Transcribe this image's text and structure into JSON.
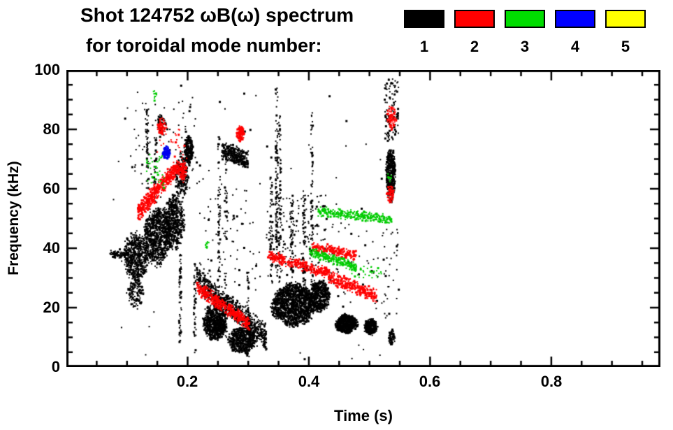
{
  "title_line1": "Shot 124752 ωB(ω) spectrum",
  "title_line2": "for toroidal mode number:",
  "legend": {
    "items": [
      {
        "label": "1",
        "color": "#000000"
      },
      {
        "label": "2",
        "color": "#ff0000"
      },
      {
        "label": "3",
        "color": "#00dd00"
      },
      {
        "label": "4",
        "color": "#0000ff"
      },
      {
        "label": "5",
        "color": "#ffff00"
      }
    ]
  },
  "chart_data": {
    "type": "scatter",
    "title": "Shot 124752 ωB(ω) spectrum for toroidal mode number: 1 2 3 4 5",
    "xlabel": "Time (s)",
    "ylabel": "Frequency (kHz)",
    "xlim": [
      0,
      0.98
    ],
    "ylim": [
      0,
      100
    ],
    "x_major_ticks": [
      0.2,
      0.4,
      0.6,
      0.8
    ],
    "x_tick_labels": [
      "0.2",
      "0.4",
      "0.6",
      "0.8"
    ],
    "x_minor_step": 0.05,
    "y_major_ticks": [
      0,
      20,
      40,
      60,
      80,
      100
    ],
    "y_tick_labels": [
      "0",
      "20",
      "40",
      "60",
      "80",
      "100"
    ],
    "y_minor_step": 5,
    "grid": false,
    "legend_position": "top-right",
    "modes": [
      {
        "n": 1,
        "color": "#000000"
      },
      {
        "n": 2,
        "color": "#ff0000"
      },
      {
        "n": 3,
        "color": "#00cc00"
      },
      {
        "n": 4,
        "color": "#0000ee"
      },
      {
        "n": 5,
        "color": "#ffff00"
      }
    ],
    "clusters": [
      {
        "mode": 1,
        "shape": "band",
        "t0": 0.072,
        "f0": 38,
        "t1": 0.103,
        "f1": 38.5,
        "th": 1.6,
        "n": 80
      },
      {
        "mode": 1,
        "shape": "blob",
        "tc": 0.115,
        "fc": 37,
        "tr": 0.023,
        "fr": 9,
        "n": 550
      },
      {
        "mode": 1,
        "shape": "blob",
        "tc": 0.114,
        "fc": 25,
        "tr": 0.015,
        "fr": 6,
        "n": 130
      },
      {
        "mode": 1,
        "shape": "blob",
        "tc": 0.15,
        "fc": 44,
        "tr": 0.026,
        "fr": 11,
        "n": 800
      },
      {
        "mode": 1,
        "shape": "blob",
        "tc": 0.178,
        "fc": 49,
        "tr": 0.02,
        "fr": 10,
        "n": 500
      },
      {
        "mode": 1,
        "shape": "vline",
        "t": 0.134,
        "f0": 60,
        "f1": 87,
        "n": 55
      },
      {
        "mode": 1,
        "shape": "vline",
        "t": 0.147,
        "f0": 55,
        "f1": 78,
        "n": 45
      },
      {
        "mode": 1,
        "shape": "blob",
        "tc": 0.157,
        "fc": 82,
        "tr": 0.008,
        "fr": 4,
        "n": 50
      },
      {
        "mode": 1,
        "shape": "blob",
        "tc": 0.19,
        "fc": 64,
        "tr": 0.012,
        "fr": 9,
        "n": 220
      },
      {
        "mode": 1,
        "shape": "blob",
        "tc": 0.202,
        "fc": 73,
        "tr": 0.008,
        "fr": 5.5,
        "n": 240
      },
      {
        "mode": 1,
        "shape": "vline",
        "t": 0.188,
        "f0": 8,
        "f1": 38,
        "n": 60
      },
      {
        "mode": 1,
        "shape": "vline",
        "t": 0.212,
        "f0": 10,
        "f1": 35,
        "n": 45
      },
      {
        "mode": 1,
        "shape": "band",
        "t0": 0.215,
        "f0": 30,
        "t1": 0.33,
        "f1": 10,
        "th": 5,
        "n": 700
      },
      {
        "mode": 1,
        "shape": "blob",
        "tc": 0.245,
        "fc": 15,
        "tr": 0.022,
        "fr": 7,
        "n": 700
      },
      {
        "mode": 1,
        "shape": "blob",
        "tc": 0.29,
        "fc": 9,
        "tr": 0.025,
        "fr": 5,
        "n": 550
      },
      {
        "mode": 1,
        "shape": "band",
        "t0": 0.256,
        "f0": 73,
        "t1": 0.3,
        "f1": 69.5,
        "th": 3.5,
        "n": 320
      },
      {
        "mode": 1,
        "shape": "vline",
        "t": 0.252,
        "f0": 12,
        "f1": 79,
        "n": 70
      },
      {
        "mode": 1,
        "shape": "vline",
        "t": 0.263,
        "f0": 10,
        "f1": 72,
        "n": 55
      },
      {
        "mode": 1,
        "shape": "vline",
        "t": 0.3,
        "f0": 3,
        "f1": 32,
        "n": 55
      },
      {
        "mode": 1,
        "shape": "blob",
        "tc": 0.375,
        "fc": 21,
        "tr": 0.041,
        "fr": 8,
        "n": 1400
      },
      {
        "mode": 1,
        "shape": "vline",
        "t": 0.347,
        "f0": 30,
        "f1": 94,
        "n": 100
      },
      {
        "mode": 1,
        "shape": "vline",
        "t": 0.352,
        "f0": 28,
        "f1": 86,
        "n": 70
      },
      {
        "mode": 1,
        "shape": "vline",
        "t": 0.338,
        "f0": 28,
        "f1": 66,
        "n": 55
      },
      {
        "mode": 1,
        "shape": "vline",
        "t": 0.372,
        "f0": 28,
        "f1": 55,
        "n": 45
      },
      {
        "mode": 1,
        "shape": "vline",
        "t": 0.392,
        "f0": 26,
        "f1": 58,
        "n": 55
      },
      {
        "mode": 1,
        "shape": "vline",
        "t": 0.405,
        "f0": 24,
        "f1": 86,
        "n": 75
      },
      {
        "mode": 1,
        "shape": "blob",
        "tc": 0.418,
        "fc": 24,
        "tr": 0.018,
        "fr": 6,
        "n": 450
      },
      {
        "mode": 1,
        "shape": "blob",
        "tc": 0.462,
        "fc": 14.5,
        "tr": 0.02,
        "fr": 3.5,
        "n": 600
      },
      {
        "mode": 1,
        "shape": "blob",
        "tc": 0.502,
        "fc": 13.5,
        "tr": 0.012,
        "fr": 3,
        "n": 300
      },
      {
        "mode": 1,
        "shape": "blob",
        "tc": 0.535,
        "fc": 65,
        "tr": 0.009,
        "fr": 10,
        "n": 450
      },
      {
        "mode": 1,
        "shape": "scatter",
        "t0": 0.525,
        "t1": 0.548,
        "f0": 76,
        "f1": 97,
        "n": 110
      },
      {
        "mode": 1,
        "shape": "blob",
        "tc": 0.537,
        "fc": 10,
        "tr": 0.006,
        "fr": 3,
        "n": 70
      },
      {
        "mode": 1,
        "shape": "scatter",
        "t0": 0.33,
        "t1": 0.43,
        "f0": 32,
        "f1": 58,
        "n": 150
      },
      {
        "mode": 1,
        "shape": "scatter",
        "t0": 0.1,
        "t1": 0.22,
        "f0": 60,
        "f1": 90,
        "n": 70
      },
      {
        "mode": 1,
        "shape": "scatter",
        "t0": 0.22,
        "t1": 0.32,
        "f0": 28,
        "f1": 62,
        "n": 60
      },
      {
        "mode": 1,
        "shape": "scatter",
        "t0": 0.43,
        "t1": 0.52,
        "f0": 20,
        "f1": 50,
        "n": 45
      },
      {
        "mode": 1,
        "shape": "scatter",
        "t0": 0.52,
        "t1": 0.55,
        "f0": 15,
        "f1": 50,
        "n": 35
      },
      {
        "mode": 1,
        "shape": "scatter",
        "t0": 0.07,
        "t1": 0.55,
        "f0": 2,
        "f1": 97,
        "n": 80
      },
      {
        "mode": 2,
        "shape": "band",
        "t0": 0.118,
        "f0": 52,
        "t1": 0.186,
        "f1": 68,
        "th": 3.5,
        "n": 520
      },
      {
        "mode": 2,
        "shape": "blob",
        "tc": 0.158,
        "fc": 81,
        "tr": 0.008,
        "fr": 3.5,
        "n": 70
      },
      {
        "mode": 2,
        "shape": "blob",
        "tc": 0.192,
        "fc": 66,
        "tr": 0.008,
        "fr": 4,
        "n": 90
      },
      {
        "mode": 2,
        "shape": "band",
        "t0": 0.215,
        "f0": 27,
        "t1": 0.302,
        "f1": 14.5,
        "th": 2.8,
        "n": 450
      },
      {
        "mode": 2,
        "shape": "blob",
        "tc": 0.287,
        "fc": 78.5,
        "tr": 0.008,
        "fr": 2.8,
        "n": 110
      },
      {
        "mode": 2,
        "shape": "band",
        "t0": 0.332,
        "f0": 37.5,
        "t1": 0.435,
        "f1": 31.5,
        "th": 2.2,
        "n": 330
      },
      {
        "mode": 2,
        "shape": "band",
        "t0": 0.405,
        "f0": 40.5,
        "t1": 0.478,
        "f1": 37.5,
        "th": 2,
        "n": 220
      },
      {
        "mode": 2,
        "shape": "band",
        "t0": 0.432,
        "f0": 30.5,
        "t1": 0.512,
        "f1": 24,
        "th": 2.6,
        "n": 330
      },
      {
        "mode": 2,
        "shape": "blob",
        "tc": 0.536,
        "fc": 84,
        "tr": 0.01,
        "fr": 4.5,
        "n": 80
      },
      {
        "mode": 2,
        "shape": "blob",
        "tc": 0.535,
        "fc": 58,
        "tr": 0.007,
        "fr": 3.5,
        "n": 60
      },
      {
        "mode": 2,
        "shape": "scatter",
        "t0": 0.15,
        "t1": 0.2,
        "f0": 70,
        "f1": 80,
        "n": 25
      },
      {
        "mode": 3,
        "shape": "band",
        "t0": 0.415,
        "f0": 52.5,
        "t1": 0.537,
        "f1": 49.5,
        "th": 1.8,
        "n": 300
      },
      {
        "mode": 3,
        "shape": "band",
        "t0": 0.4,
        "f0": 39,
        "t1": 0.478,
        "f1": 33.5,
        "th": 1.8,
        "n": 240
      },
      {
        "mode": 3,
        "shape": "scatter",
        "t0": 0.132,
        "t1": 0.162,
        "f0": 60,
        "f1": 72,
        "n": 40
      },
      {
        "mode": 3,
        "shape": "blob",
        "tc": 0.146,
        "fc": 91.5,
        "tr": 0.004,
        "fr": 2,
        "n": 10
      },
      {
        "mode": 3,
        "shape": "blob",
        "tc": 0.533,
        "fc": 64,
        "tr": 0.004,
        "fr": 2,
        "n": 10
      },
      {
        "mode": 3,
        "shape": "scatter",
        "t0": 0.47,
        "t1": 0.52,
        "f0": 30,
        "f1": 34,
        "n": 30
      },
      {
        "mode": 3,
        "shape": "blob",
        "tc": 0.232,
        "fc": 41,
        "tr": 0.004,
        "fr": 2,
        "n": 8
      },
      {
        "mode": 4,
        "shape": "blob",
        "tc": 0.165,
        "fc": 72,
        "tr": 0.007,
        "fr": 2.5,
        "n": 90
      }
    ]
  }
}
